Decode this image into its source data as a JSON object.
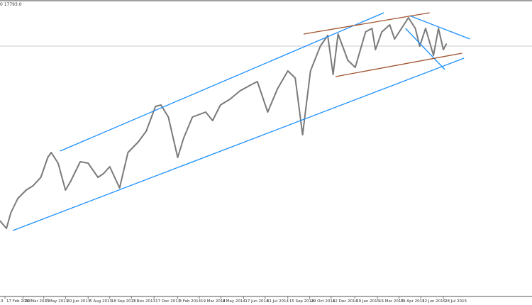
{
  "header": {
    "readout": "0 17793.0"
  },
  "chart_data": {
    "type": "line",
    "grid": false,
    "x_ticks": [
      "17 Feb 2013",
      "26 Mar 2013",
      "7 May 2013",
      "20 Jun 2013",
      "5 Aug 2013",
      "18 Sep 2013",
      "1 Nov 2013",
      "17 Dec 2013",
      "3 Feb 2014",
      "19 Mar 2014",
      "2 May 2014",
      "17 Jun 2014",
      "31 Jul 2014",
      "15 Sep 2014",
      "29 Oct 2014",
      "12 Dec 2014",
      "29 Jan 2015",
      "16 Mar 2015",
      "29 Apr 2015",
      "12 Jun 2015",
      "28 Jul 2015"
    ],
    "x_tick_dates": [
      "2013-02-17",
      "2013-03-26",
      "2013-05-07",
      "2013-06-20",
      "2013-08-05",
      "2013-09-18",
      "2013-11-01",
      "2013-12-17",
      "2014-02-03",
      "2014-03-19",
      "2014-05-02",
      "2014-06-17",
      "2014-07-31",
      "2014-09-15",
      "2014-10-29",
      "2014-12-12",
      "2015-01-29",
      "2015-03-16",
      "2015-04-29",
      "2015-06-12",
      "2015-07-28"
    ],
    "ylim": [
      13300,
      18300
    ],
    "series": [
      {
        "color": "#7a7a7a",
        "points": [
          [
            "2013-02-05",
            13980
          ],
          [
            "2013-02-20",
            13800
          ],
          [
            "2013-03-01",
            14130
          ],
          [
            "2013-03-15",
            14430
          ],
          [
            "2013-04-01",
            14610
          ],
          [
            "2013-04-15",
            14700
          ],
          [
            "2013-05-01",
            14880
          ],
          [
            "2013-05-15",
            15300
          ],
          [
            "2013-05-22",
            15405
          ],
          [
            "2013-06-05",
            15180
          ],
          [
            "2013-06-20",
            14610
          ],
          [
            "2013-07-01",
            14805
          ],
          [
            "2013-07-20",
            15210
          ],
          [
            "2013-08-05",
            15180
          ],
          [
            "2013-08-25",
            14880
          ],
          [
            "2013-09-05",
            14955
          ],
          [
            "2013-09-18",
            15105
          ],
          [
            "2013-10-08",
            14655
          ],
          [
            "2013-10-25",
            15405
          ],
          [
            "2013-11-15",
            15630
          ],
          [
            "2013-12-01",
            15855
          ],
          [
            "2013-12-20",
            16380
          ],
          [
            "2013-12-31",
            16410
          ],
          [
            "2014-01-15",
            16155
          ],
          [
            "2014-02-03",
            15300
          ],
          [
            "2014-02-15",
            15705
          ],
          [
            "2014-03-05",
            16155
          ],
          [
            "2014-04-01",
            16260
          ],
          [
            "2014-04-15",
            16080
          ],
          [
            "2014-05-01",
            16410
          ],
          [
            "2014-05-20",
            16530
          ],
          [
            "2014-06-10",
            16710
          ],
          [
            "2014-07-01",
            16830
          ],
          [
            "2014-07-15",
            16905
          ],
          [
            "2014-08-05",
            16260
          ],
          [
            "2014-08-25",
            16755
          ],
          [
            "2014-09-15",
            17130
          ],
          [
            "2014-09-30",
            16980
          ],
          [
            "2014-10-15",
            15780
          ],
          [
            "2014-10-31",
            17130
          ],
          [
            "2014-11-20",
            17655
          ],
          [
            "2014-12-05",
            17880
          ],
          [
            "2014-12-16",
            17055
          ],
          [
            "2014-12-26",
            17910
          ],
          [
            "2015-01-15",
            17355
          ],
          [
            "2015-01-30",
            17205
          ],
          [
            "2015-02-20",
            17955
          ],
          [
            "2015-03-05",
            18030
          ],
          [
            "2015-03-12",
            17580
          ],
          [
            "2015-03-25",
            17955
          ],
          [
            "2015-04-10",
            18105
          ],
          [
            "2015-04-20",
            17805
          ],
          [
            "2015-05-18",
            18255
          ],
          [
            "2015-06-01",
            18030
          ],
          [
            "2015-06-10",
            17655
          ],
          [
            "2015-06-22",
            18030
          ],
          [
            "2015-07-08",
            17460
          ],
          [
            "2015-07-18",
            18030
          ],
          [
            "2015-07-28",
            17580
          ],
          [
            "2015-08-03",
            17700
          ]
        ]
      }
    ],
    "horizontal_line": {
      "price": 17655,
      "color": "#c8c8c8"
    },
    "trendlines": [
      {
        "color": "#1e90ff",
        "from": [
          "2013-06-09",
          15435
        ],
        "to": [
          "2015-03-29",
          18360
        ]
      },
      {
        "color": "#1e90ff",
        "from": [
          "2013-03-05",
          13755
        ],
        "to": [
          "2015-09-08",
          17400
        ]
      },
      {
        "color": "#1e90ff",
        "from": [
          "2015-05-20",
          18300
        ],
        "to": [
          "2015-09-20",
          17805
        ]
      },
      {
        "color": "#1e90ff",
        "from": [
          "2015-05-12",
          18030
        ],
        "to": [
          "2015-07-31",
          17160
        ]
      },
      {
        "color": "#a0522d",
        "from": [
          "2014-10-17",
          17910
        ],
        "to": [
          "2015-06-30",
          18360
        ]
      },
      {
        "color": "#a0522d",
        "from": [
          "2014-12-21",
          17010
        ],
        "to": [
          "2015-09-04",
          17505
        ]
      }
    ]
  }
}
